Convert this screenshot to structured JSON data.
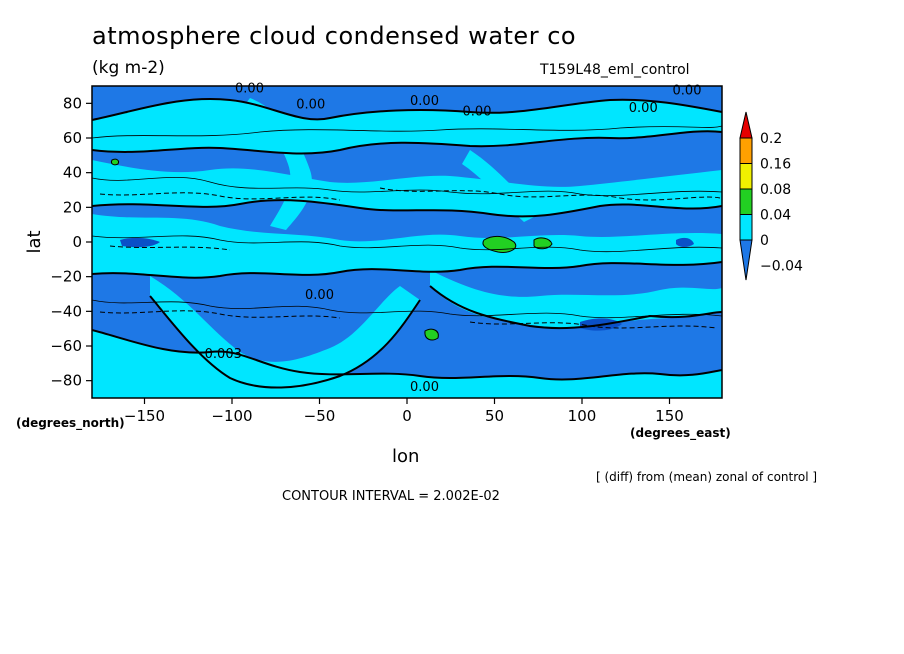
{
  "chart_data": {
    "type": "heatmap",
    "title": "atmosphere cloud condensed water co",
    "units": "(kg m-2)",
    "experiment": "T159L48_eml_control",
    "xlabel": "lon",
    "ylabel": "lat",
    "x_unit_label": "(degrees_east)",
    "y_unit_label": "(degrees_north)",
    "xlim": [
      -180,
      180
    ],
    "ylim": [
      -90,
      90
    ],
    "x_ticks": [
      -150,
      -100,
      -50,
      0,
      50,
      100,
      150
    ],
    "y_ticks": [
      -80,
      -60,
      -40,
      -20,
      0,
      20,
      40,
      60,
      80
    ],
    "x_tick_labels": [
      "−150",
      "−100",
      "−50",
      "0",
      "50",
      "100",
      "150"
    ],
    "y_tick_labels": [
      "−80",
      "−60",
      "−40",
      "−20",
      "0",
      "20",
      "40",
      "60",
      "80"
    ],
    "colorbar": {
      "levels": [
        -0.04,
        0,
        0.04,
        0.08,
        0.16,
        0.2
      ],
      "labels": [
        "−0.04",
        "0",
        "0.04",
        "0.08",
        "0.16",
        "0.2"
      ],
      "colors": [
        "#1e78e6",
        "#00e6ff",
        "#22d022",
        "#f0f000",
        "#ffa000",
        "#e60000"
      ]
    },
    "contour_labels": [
      {
        "text": "0.00",
        "lon": -90,
        "lat": 89
      },
      {
        "text": "0.00",
        "lon": -55,
        "lat": 80
      },
      {
        "text": "0.00",
        "lon": 10,
        "lat": 82
      },
      {
        "text": "0.00",
        "lon": 40,
        "lat": 76
      },
      {
        "text": "0.00",
        "lon": 135,
        "lat": 78
      },
      {
        "text": "0.00",
        "lon": 160,
        "lat": 88
      },
      {
        "text": "0.003",
        "lon": -105,
        "lat": -64
      },
      {
        "text": "0.00",
        "lon": -50,
        "lat": -30
      },
      {
        "text": "0.00",
        "lon": 10,
        "lat": -83
      }
    ],
    "note": "[ (diff) from (mean) zonal of control ]",
    "contour_interval": "CONTOUR INTERVAL = 2.002E-02"
  }
}
